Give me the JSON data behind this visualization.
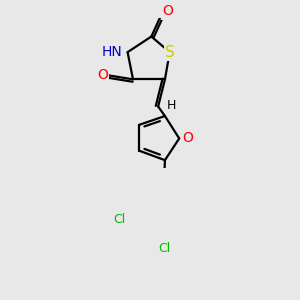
{
  "bg_color": "#e8e8e8",
  "atom_colors": {
    "O": "#ff0000",
    "N": "#0000cc",
    "S": "#cccc00",
    "Cl": "#00bb00",
    "C": "#000000",
    "H": "#000000"
  },
  "font_size_atoms": 10,
  "line_width": 1.6
}
